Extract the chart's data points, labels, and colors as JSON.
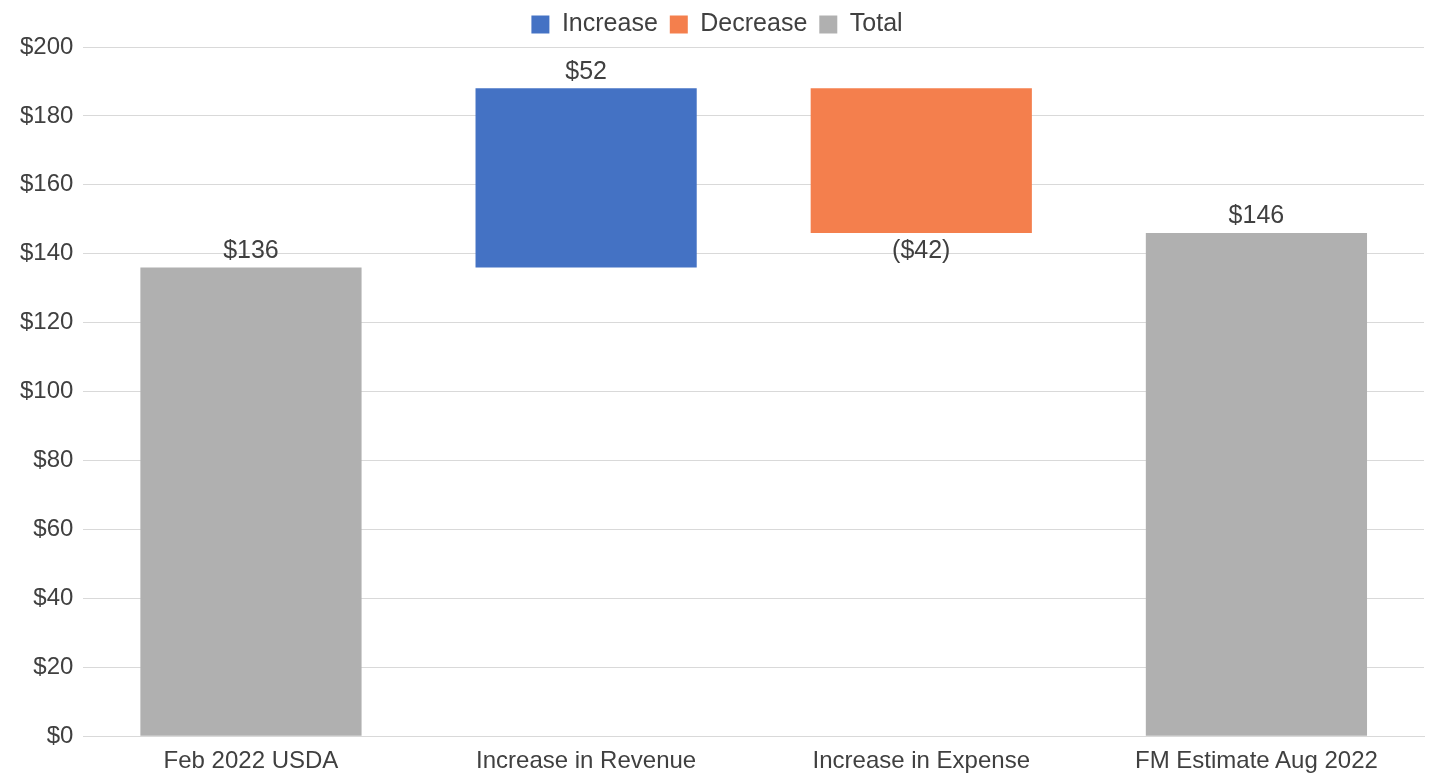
{
  "chart_data": {
    "type": "bar",
    "categories": [
      "Feb 2022 USDA",
      "Increase in Revenue",
      "Increase in Expense",
      "FM Estimate Aug 2022"
    ],
    "series": [
      {
        "name": "Increase",
        "color": "#4472c4",
        "base": [
          null,
          136,
          null,
          null
        ],
        "values": [
          null,
          52,
          null,
          null
        ],
        "value_labels": [
          null,
          "$52",
          null,
          null
        ]
      },
      {
        "name": "Decrease",
        "color": "#f47f4d",
        "base": [
          null,
          null,
          188,
          null
        ],
        "values": [
          null,
          null,
          -42,
          null
        ],
        "value_labels": [
          null,
          null,
          "($42)",
          null
        ]
      },
      {
        "name": "Total",
        "color": "#b0b0b0",
        "base": [
          0,
          null,
          null,
          0
        ],
        "values": [
          136,
          null,
          null,
          146
        ],
        "value_labels": [
          "$136",
          null,
          null,
          "$146"
        ]
      }
    ],
    "ylim": [
      0,
      200
    ],
    "yticks": [
      {
        "value": 0,
        "label": "$0"
      },
      {
        "value": 20,
        "label": "$20"
      },
      {
        "value": 40,
        "label": "$40"
      },
      {
        "value": 60,
        "label": "$60"
      },
      {
        "value": 80,
        "label": "$80"
      },
      {
        "value": 100,
        "label": "$100"
      },
      {
        "value": 120,
        "label": "$120"
      },
      {
        "value": 140,
        "label": "$140"
      },
      {
        "value": 160,
        "label": "$160"
      },
      {
        "value": 180,
        "label": "$180"
      },
      {
        "value": 200,
        "label": "$200"
      }
    ],
    "grid": "y",
    "legend": "top"
  }
}
